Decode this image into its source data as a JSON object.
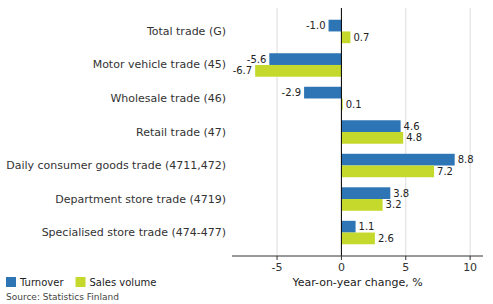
{
  "chart_data": {
    "type": "bar",
    "orientation": "horizontal",
    "categories": [
      "Total trade (G)",
      "Motor vehicle trade (45)",
      "Wholesale trade (46)",
      "Retail trade (47)",
      "Daily consumer goods trade (4711,472)",
      "Department store trade (4719)",
      "Specialised store trade (474-477)"
    ],
    "series": [
      {
        "name": "Turnover",
        "color": "#2e75b6",
        "values": [
          -1.0,
          -5.6,
          -2.9,
          4.6,
          8.8,
          3.8,
          1.1
        ],
        "value_labels": [
          "-1.0",
          "-5.6",
          "-2.9",
          "4.6",
          "8.8",
          "3.8",
          "1.1"
        ]
      },
      {
        "name": "Sales volume",
        "color": "#c5d92d",
        "values": [
          0.7,
          -6.7,
          0.1,
          4.8,
          7.2,
          3.2,
          2.6
        ],
        "value_labels": [
          "0.7",
          "-6.7",
          "0.1",
          "4.8",
          "7.2",
          "3.2",
          "2.6"
        ]
      }
    ],
    "xlabel": "Year-on-year change, %",
    "xlim": [
      -8.5,
      11
    ],
    "xticks": [
      -5,
      0,
      5,
      10
    ],
    "grid": true,
    "legend": "lower left",
    "data_labels": true,
    "source": "Source: Statistics Finland"
  }
}
